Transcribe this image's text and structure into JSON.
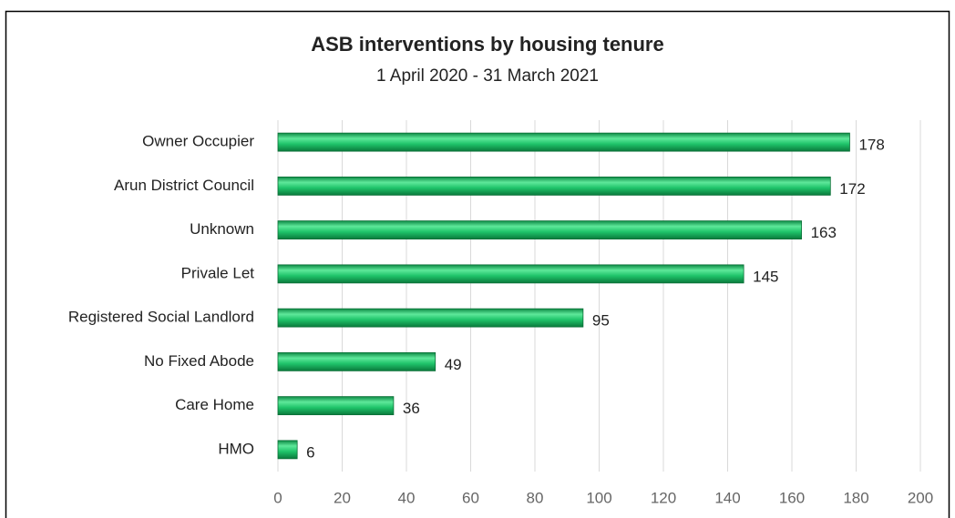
{
  "chart_data": {
    "type": "bar",
    "orientation": "horizontal",
    "title": "ASB interventions by housing tenure",
    "subtitle": "1 April 2020 - 31 March 2021",
    "categories": [
      "Owner Occupier",
      "Arun District Council",
      "Unknown",
      "Privale Let",
      "Registered Social Landlord",
      "No Fixed Abode",
      "Care Home",
      "HMO"
    ],
    "values": [
      178,
      172,
      163,
      145,
      95,
      49,
      36,
      6
    ],
    "color": "#1fc46a",
    "xlim": [
      0,
      200
    ],
    "xticks": [
      0,
      20,
      40,
      60,
      80,
      100,
      120,
      140,
      160,
      180,
      200
    ],
    "grid": true
  }
}
